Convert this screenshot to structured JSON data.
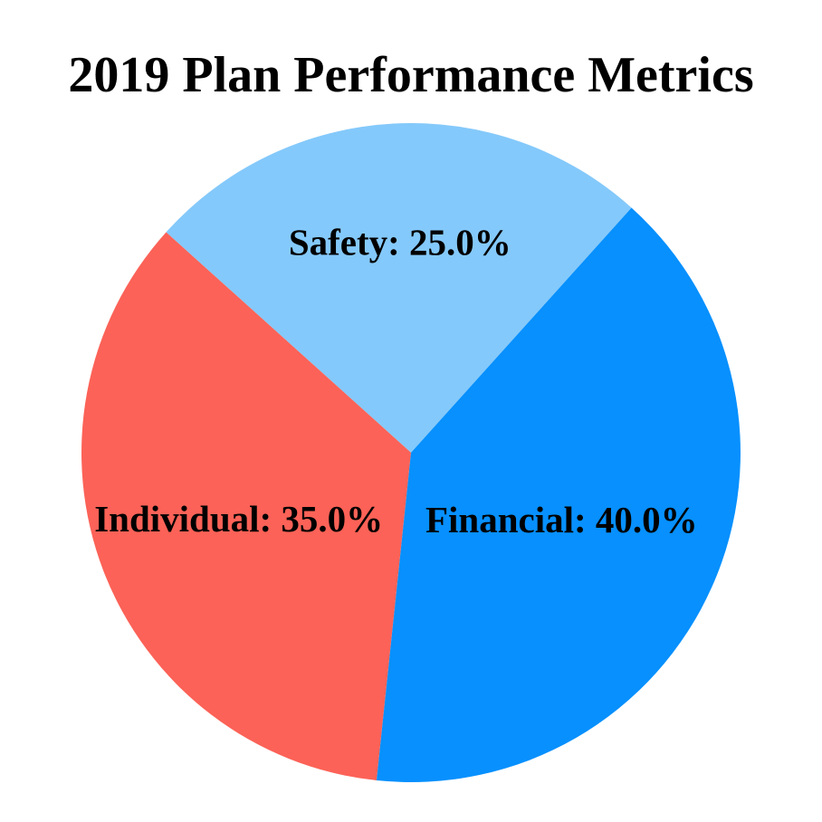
{
  "chart_data": {
    "type": "pie",
    "title": "2019 Plan Performance Metrics",
    "slices": [
      {
        "label": "Safety",
        "value": 25.0,
        "display": "Safety: 25.0%",
        "color": "#84C9FB"
      },
      {
        "label": "Individual",
        "value": 35.0,
        "display": "Individual: 35.0%",
        "color": "#FC6257"
      },
      {
        "label": "Financial",
        "value": 40.0,
        "display": "Financial: 40.0%",
        "color": "#0790FE"
      }
    ],
    "startangle": 48,
    "counterclock": true,
    "label_distance": [
      0.64,
      0.56,
      0.5
    ],
    "legend": "none",
    "grid": "off",
    "background_color": "#FFFFFF",
    "text_color": "#000000"
  }
}
